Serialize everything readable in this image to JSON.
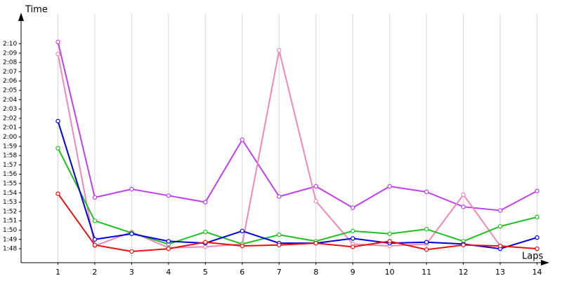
{
  "chart_data": {
    "type": "line",
    "y_label": "Time",
    "x_label": "Laps",
    "x": [
      1,
      2,
      3,
      4,
      5,
      6,
      7,
      8,
      9,
      10,
      11,
      12,
      13,
      14
    ],
    "xlim": [
      0,
      14.2
    ],
    "xticks": [
      1,
      2,
      3,
      4,
      5,
      6,
      7,
      8,
      9,
      10,
      11,
      12,
      13,
      14
    ],
    "ylim": [
      106.5,
      133.2
    ],
    "yticks": [
      {
        "value": 108,
        "label": "1:48"
      },
      {
        "value": 109,
        "label": "1:49"
      },
      {
        "value": 110,
        "label": "1:50"
      },
      {
        "value": 111,
        "label": "1:51"
      },
      {
        "value": 112,
        "label": "1:52"
      },
      {
        "value": 113,
        "label": "1:53"
      },
      {
        "value": 114,
        "label": "1:54"
      },
      {
        "value": 115,
        "label": "1:55"
      },
      {
        "value": 116,
        "label": "1:56"
      },
      {
        "value": 117,
        "label": "1:57"
      },
      {
        "value": 118,
        "label": "1:58"
      },
      {
        "value": 119,
        "label": "1:59"
      },
      {
        "value": 120,
        "label": "2:00"
      },
      {
        "value": 121,
        "label": "2:01"
      },
      {
        "value": 122,
        "label": "2:02"
      },
      {
        "value": 123,
        "label": "2:03"
      },
      {
        "value": 124,
        "label": "2:04"
      },
      {
        "value": 125,
        "label": "2:05"
      },
      {
        "value": 126,
        "label": "2:06"
      },
      {
        "value": 127,
        "label": "2:07"
      },
      {
        "value": 128,
        "label": "2:08"
      },
      {
        "value": 129,
        "label": "2:09"
      },
      {
        "value": 130,
        "label": "2:10"
      }
    ],
    "grid": "x",
    "series": [
      {
        "color": "#c040f0",
        "values": [
          130.2,
          113.5,
          114.4,
          113.7,
          113.0,
          119.7,
          113.6,
          114.7,
          112.4,
          114.7,
          114.1,
          112.5,
          112.1,
          114.2
        ]
      },
      {
        "color": "#f088b8",
        "values": [
          128.9,
          108.3,
          109.8,
          108.1,
          108.2,
          108.5,
          129.3,
          113.1,
          108.5,
          108.3,
          108.5,
          113.8,
          108.3,
          null
        ]
      },
      {
        "color": "#20c020",
        "values": [
          118.8,
          111.0,
          109.7,
          108.5,
          109.8,
          108.5,
          109.5,
          108.8,
          109.9,
          109.6,
          110.1,
          108.8,
          110.4,
          111.4
        ]
      },
      {
        "color": "#0000e0",
        "values": [
          121.7,
          109.0,
          109.6,
          108.8,
          108.6,
          109.9,
          108.6,
          108.6,
          109.1,
          108.6,
          108.7,
          108.5,
          108.0,
          109.2
        ]
      },
      {
        "color": "#e81010",
        "values": [
          113.9,
          108.4,
          107.7,
          108.0,
          108.7,
          108.3,
          108.4,
          108.6,
          108.2,
          108.8,
          107.9,
          108.4,
          108.3,
          108.0
        ]
      }
    ]
  }
}
